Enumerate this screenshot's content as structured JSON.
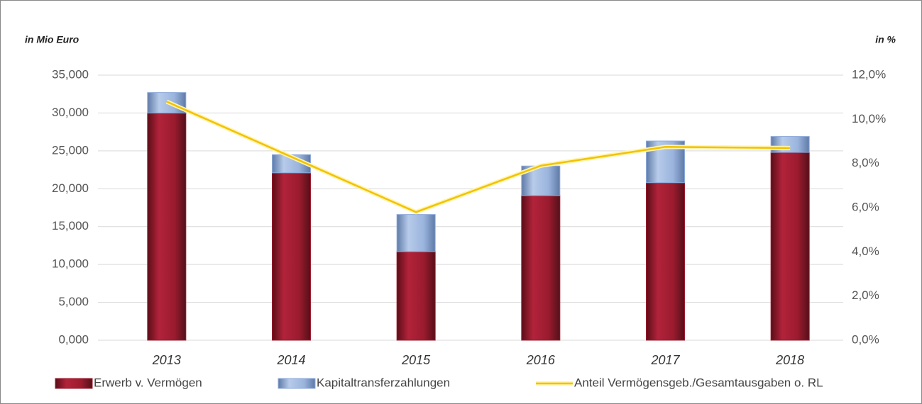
{
  "chart_data": {
    "type": "bar",
    "y_label": "in Mio Euro",
    "y2_label": "in %",
    "categories": [
      "2013",
      "2014",
      "2015",
      "2016",
      "2017",
      "2018"
    ],
    "series": [
      {
        "name": "Erwerb v. Vermögen",
        "color": "#9b1b2e",
        "type": "bar",
        "values": [
          30000,
          22100,
          11700,
          19100,
          20800,
          24800
        ]
      },
      {
        "name": "Kapitaltransferzahlungen",
        "color": "#8eaadb",
        "type": "bar",
        "values": [
          2700,
          2400,
          4900,
          3900,
          5500,
          2100
        ]
      },
      {
        "name": "Anteil Vermögensgeb./Gesamtausgaben o. RL",
        "color": "#f2c200",
        "type": "line",
        "axis": "y2",
        "values": [
          10.8,
          8.3,
          5.8,
          7.9,
          8.75,
          8.7
        ]
      }
    ],
    "stacked": true,
    "ylim": [
      0,
      35000
    ],
    "yticks": [
      {
        "value": 0,
        "label": "0,000"
      },
      {
        "value": 5000,
        "label": "5,000"
      },
      {
        "value": 10000,
        "label": "10,000"
      },
      {
        "value": 15000,
        "label": "15,000"
      },
      {
        "value": 20000,
        "label": "20,000"
      },
      {
        "value": 25000,
        "label": "25,000"
      },
      {
        "value": 30000,
        "label": "30,000"
      },
      {
        "value": 35000,
        "label": "35,000"
      }
    ],
    "y2lim": [
      0,
      12
    ],
    "y2ticks": [
      {
        "value": 0,
        "label": "0,0%"
      },
      {
        "value": 2,
        "label": "2,0%"
      },
      {
        "value": 4,
        "label": "4,0%"
      },
      {
        "value": 6,
        "label": "6,0%"
      },
      {
        "value": 8,
        "label": "8,0%"
      },
      {
        "value": 10,
        "label": "10,0%"
      },
      {
        "value": 12,
        "label": "12,0%"
      }
    ],
    "grid": true,
    "legend": "bottom"
  }
}
